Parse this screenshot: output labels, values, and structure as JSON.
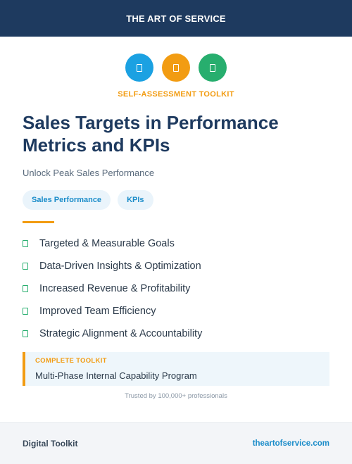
{
  "header": {
    "brand": "THE ART OF SERVICE"
  },
  "icons": [
    {
      "name": "document-icon",
      "color": "#1ba1e2"
    },
    {
      "name": "document-icon",
      "color": "#f29c12"
    },
    {
      "name": "document-icon",
      "color": "#27ae6e"
    }
  ],
  "eyebrow": "SELF-ASSESSMENT TOOLKIT",
  "title": "Sales Targets in Performance Metrics and KPIs",
  "subtitle": "Unlock Peak Sales Performance",
  "tags": [
    "Sales Performance",
    "KPIs"
  ],
  "features": [
    "Targeted & Measurable Goals",
    "Data-Driven Insights & Optimization",
    "Increased Revenue & Profitability",
    "Improved Team Efficiency",
    "Strategic Alignment & Accountability"
  ],
  "callout": {
    "label": "COMPLETE TOOLKIT",
    "value": "Multi-Phase Internal Capability Program"
  },
  "trusted": "Trusted by 100,000+ professionals",
  "footer": {
    "left": "Digital Toolkit",
    "right": "theartofservice.com"
  },
  "colors": {
    "navy": "#1e3a5f",
    "accent": "#f29c12",
    "blue": "#1ba1e2",
    "green": "#27ae6e"
  }
}
